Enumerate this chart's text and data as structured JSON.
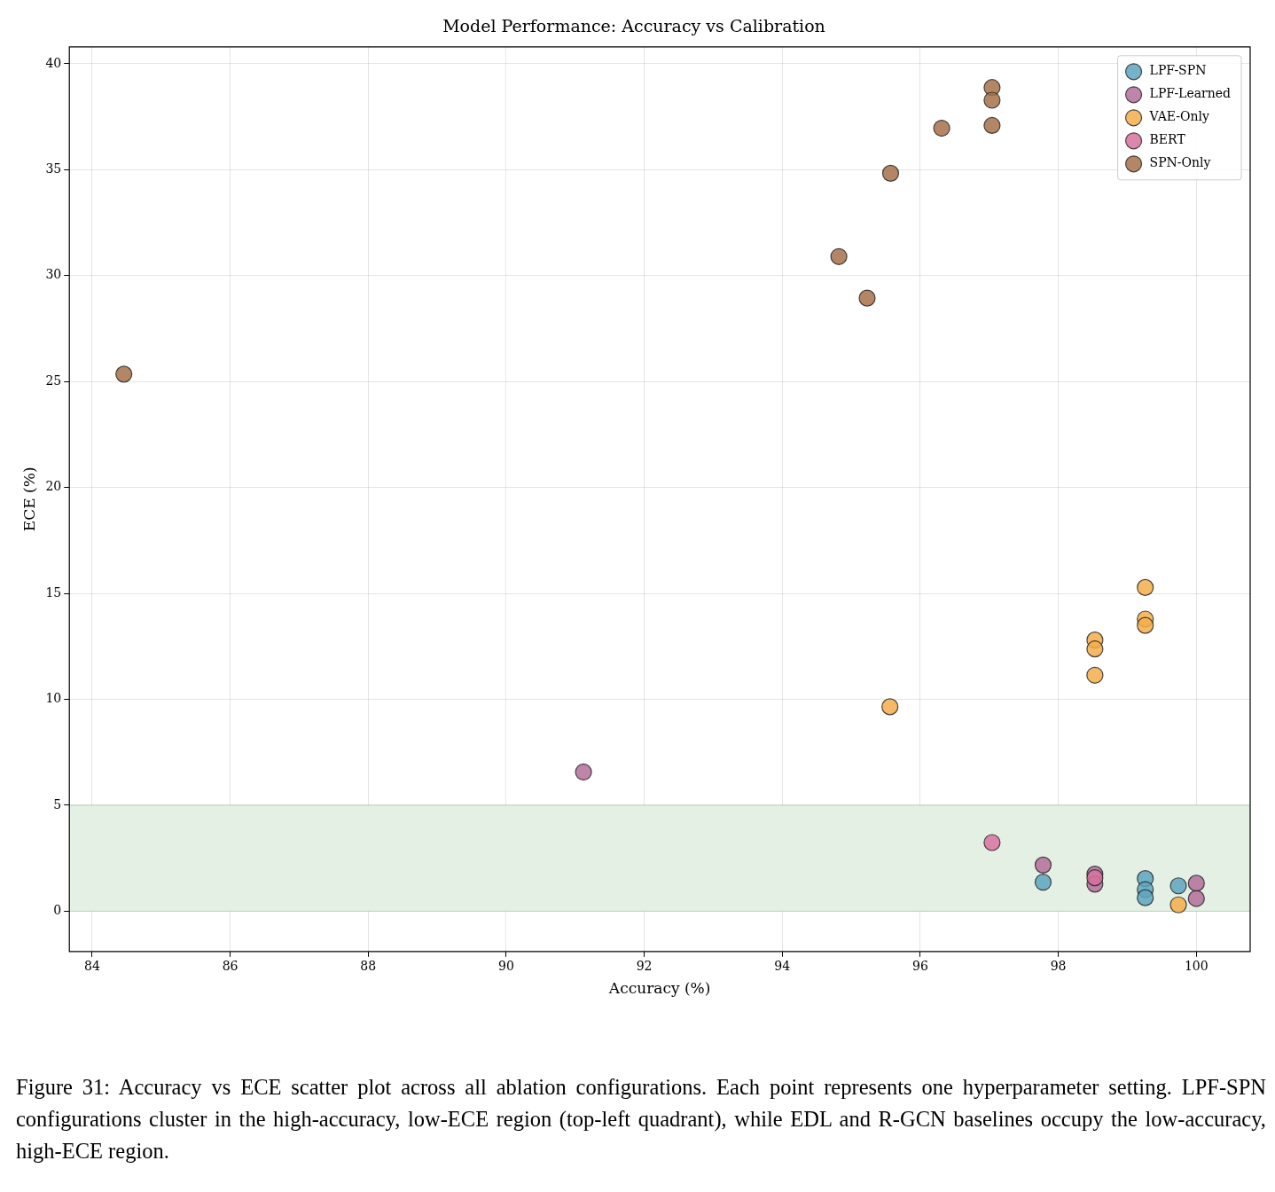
{
  "chart_data": {
    "type": "scatter",
    "title": "Model Performance: Accuracy vs Calibration",
    "xlabel": "Accuracy (%)",
    "ylabel": "ECE (%)",
    "xlim": [
      83.67,
      100.78
    ],
    "xticks": [
      84,
      86,
      88,
      90,
      92,
      94,
      96,
      98,
      100
    ],
    "ylim": [
      -1.9,
      40.8
    ],
    "yticks": [
      0,
      5,
      10,
      15,
      20,
      25,
      30,
      35,
      40
    ],
    "grid": true,
    "legend": "top right",
    "marker": "circle",
    "series": [
      {
        "name": "LPF-SPN",
        "color": "#5ea6bf",
        "x": [
          97.78,
          99.26,
          99.26,
          99.26,
          99.74
        ],
        "values": [
          1.37,
          1.54,
          1.02,
          0.64,
          1.2
        ]
      },
      {
        "name": "LPF-Learned",
        "color": "#b46f9b",
        "x": [
          91.12,
          97.78,
          98.53,
          98.53,
          100,
          100
        ],
        "values": [
          6.57,
          2.18,
          1.75,
          1.28,
          1.32,
          0.6
        ]
      },
      {
        "name": "VAE-Only",
        "color": "#f5ad4a",
        "x": [
          95.56,
          98.53,
          98.53,
          98.53,
          99.26,
          99.26,
          99.26,
          99.74
        ],
        "values": [
          9.65,
          12.8,
          12.38,
          11.14,
          15.28,
          13.79,
          13.49,
          0.3
        ]
      },
      {
        "name": "BERT",
        "color": "#d8729f",
        "x": [
          97.04,
          98.53
        ],
        "values": [
          3.24,
          1.58
        ]
      },
      {
        "name": "SPN-Only",
        "color": "#a8714a",
        "x": [
          84.46,
          94.82,
          95.23,
          95.57,
          96.31,
          97.04,
          97.04,
          97.04
        ],
        "values": [
          25.35,
          30.9,
          28.94,
          34.83,
          36.96,
          38.88,
          38.28,
          37.09
        ]
      }
    ],
    "bands": [
      {
        "axis": "y",
        "from": 0,
        "to": 5,
        "color": "#e5f0e5"
      }
    ],
    "annotations": [
      "Figure 31: Accuracy vs ECE scatter plot across all ablation configurations. Each point represents one hyperparameter setting. LPF-SPN configurations cluster in the high-accuracy, low-ECE region (top-left quadrant), while EDL and R-GCN baselines occupy the low-accuracy, high-ECE region."
    ]
  }
}
